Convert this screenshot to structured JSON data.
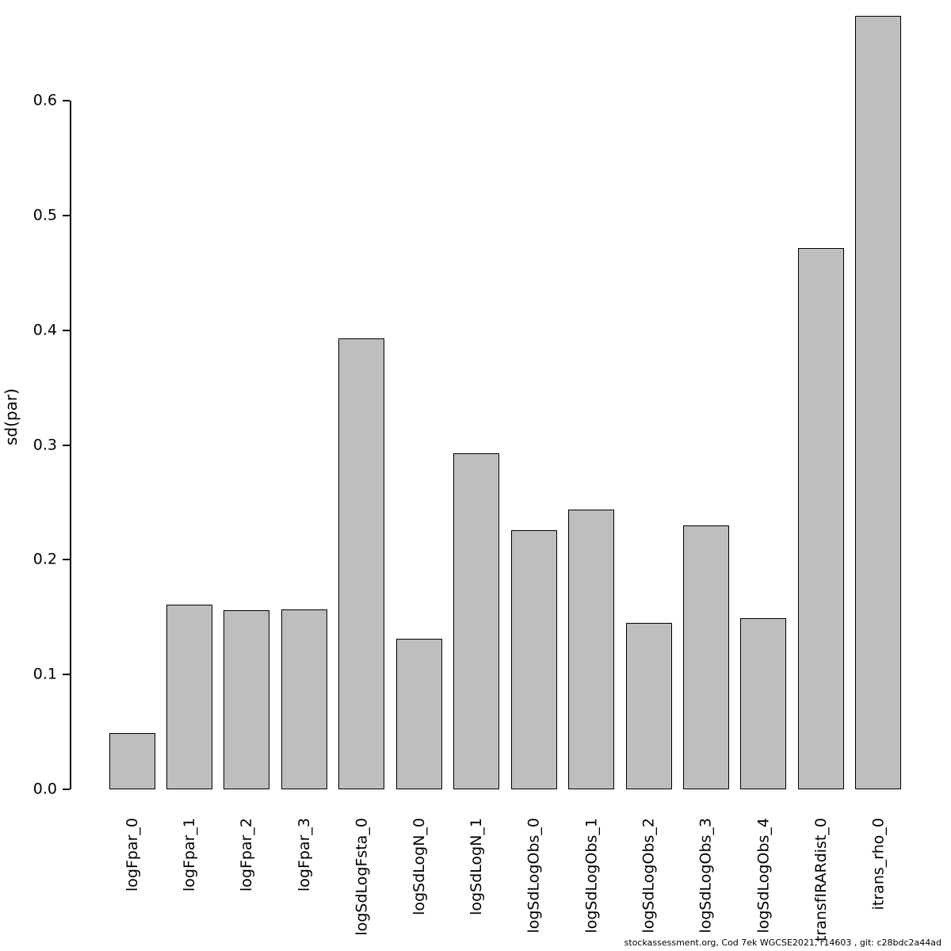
{
  "chart_data": {
    "type": "bar",
    "categories": [
      "logFpar_0",
      "logFpar_1",
      "logFpar_2",
      "logFpar_3",
      "logSdLogFsta_0",
      "logSdLogN_0",
      "logSdLogN_1",
      "logSdLogObs_0",
      "logSdLogObs_1",
      "logSdLogObs_2",
      "logSdLogObs_3",
      "logSdLogObs_4",
      "transfIRARdist_0",
      "itrans_rho_0"
    ],
    "values": [
      0.049,
      0.161,
      0.156,
      0.157,
      0.393,
      0.131,
      0.293,
      0.226,
      0.244,
      0.145,
      0.23,
      0.149,
      0.472,
      0.674
    ],
    "title": "",
    "xlabel": "",
    "ylabel": "sd(par)",
    "yticks": [
      0.0,
      0.1,
      0.2,
      0.3,
      0.4,
      0.5,
      0.6
    ],
    "ylim": [
      0,
      0.675
    ],
    "grid": false,
    "legend": false,
    "bar_fill": "#BEBEBE",
    "bar_border": "#000000"
  },
  "footer": "stockassessment.org, Cod 7ek  WGCSE2021, r14603 , git: c28bdc2a44ad"
}
